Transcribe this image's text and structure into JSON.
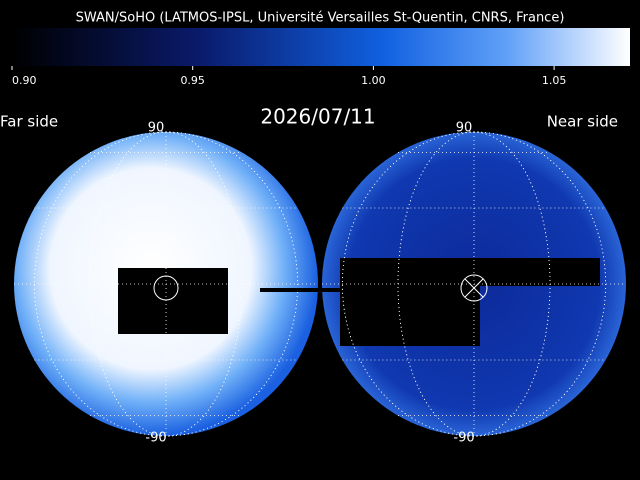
{
  "header": {
    "title": "SWAN/SoHO (LATMOS-IPSL, Université Versailles St-Quentin, CNRS, France)"
  },
  "colorbar": {
    "lim": [
      0.9,
      1.071
    ],
    "ticks": [
      {
        "value": 0.9,
        "label": "0.90"
      },
      {
        "value": 0.95,
        "label": "0.95"
      },
      {
        "value": 1.0,
        "label": "1.00"
      },
      {
        "value": 1.05,
        "label": "1.05"
      }
    ]
  },
  "date": "2026/07/11",
  "far_side": {
    "label": "Far side",
    "north": "90",
    "south": "-90"
  },
  "near_side": {
    "label": "Near side",
    "north": "90",
    "south": "-90"
  }
}
